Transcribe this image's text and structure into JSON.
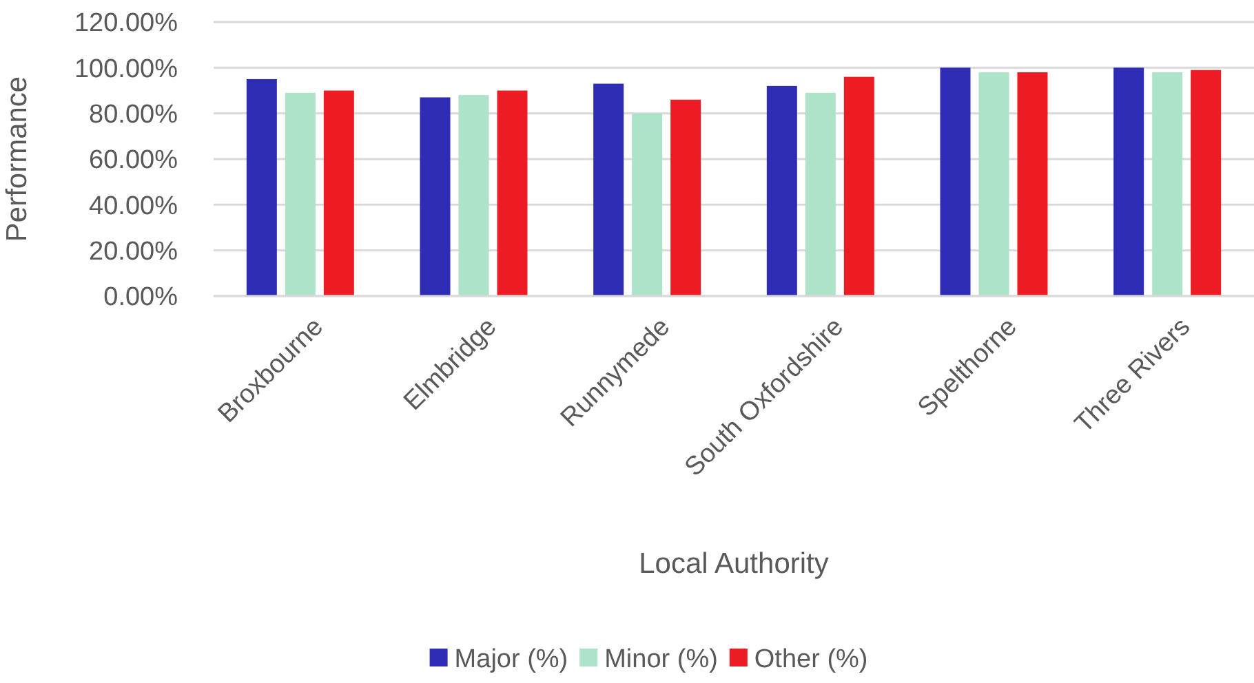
{
  "chart_data": {
    "type": "bar",
    "xlabel": "Local Authority",
    "ylabel": "Performance",
    "categories": [
      "Broxbourne",
      "Elmbridge",
      "Runnymede",
      "South Oxfordshire",
      "Spelthorne",
      "Three Rivers"
    ],
    "series": [
      {
        "name": "Major (%)",
        "color": "#2e2bb5",
        "values": [
          95,
          87,
          93,
          92,
          100,
          100
        ]
      },
      {
        "name": "Minor (%)",
        "color": "#ade3c9",
        "values": [
          89,
          88,
          80,
          89,
          98,
          98
        ]
      },
      {
        "name": "Other (%)",
        "color": "#ec1c24",
        "values": [
          90,
          90,
          86,
          96,
          98,
          99
        ]
      }
    ],
    "ylim": [
      0,
      120
    ],
    "yticks": [
      {
        "value": 0,
        "label": "0.00%"
      },
      {
        "value": 20,
        "label": "20.00%"
      },
      {
        "value": 40,
        "label": "40.00%"
      },
      {
        "value": 60,
        "label": "60.00%"
      },
      {
        "value": 80,
        "label": "80.00%"
      },
      {
        "value": 100,
        "label": "100.00%"
      },
      {
        "value": 120,
        "label": "120.00%"
      }
    ],
    "grid": "y",
    "legend": "bottom"
  }
}
